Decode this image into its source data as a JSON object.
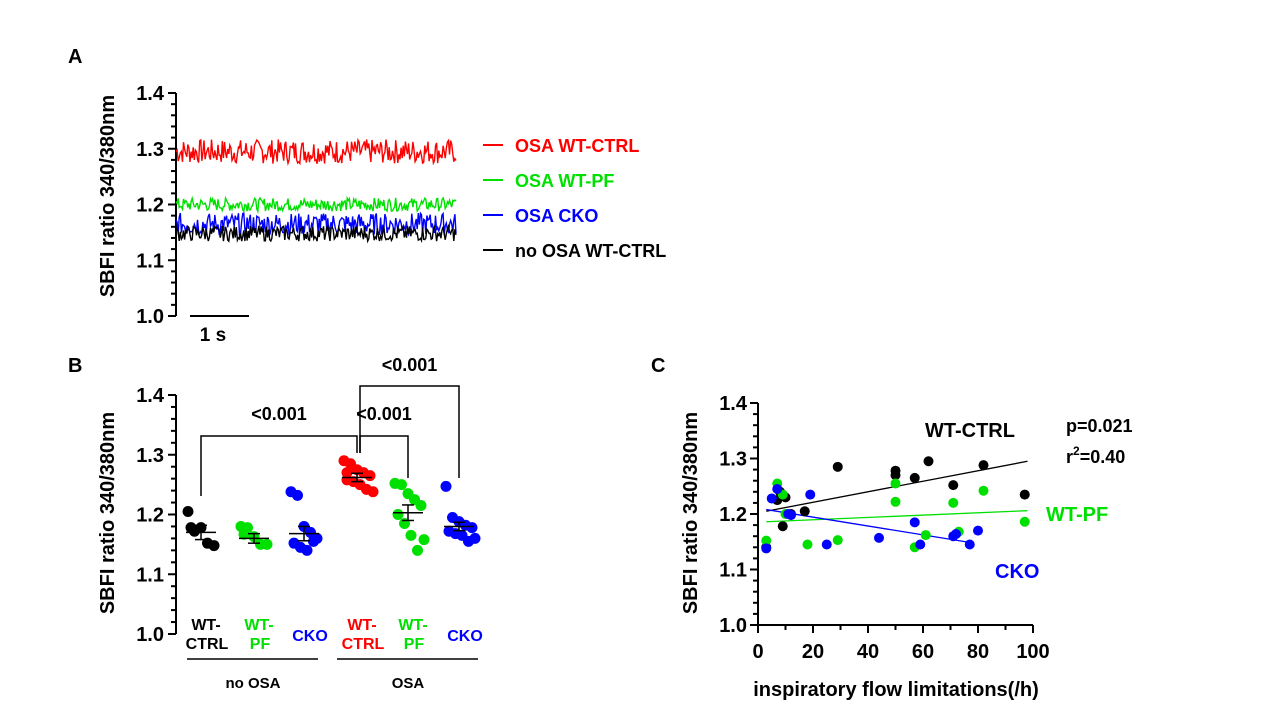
{
  "chart_data": [
    {
      "type": "line",
      "panel_label": "A",
      "ylabel": "SBFI ratio 340/380nm",
      "ylim": [
        1.0,
        1.4
      ],
      "yticks": [
        "1.4",
        "1.3",
        "1.2",
        "1.1",
        "1.0"
      ],
      "scale_bar_label": "1 s",
      "series": [
        {
          "name": "OSA WT-CTRL",
          "mean": 1.295,
          "noise": 0.022,
          "color": "#ff0000"
        },
        {
          "name": "OSA WT-PF",
          "mean": 1.2,
          "noise": 0.012,
          "color": "#00e000"
        },
        {
          "name": "OSA CKO",
          "mean": 1.165,
          "noise": 0.02,
          "color": "#0000ff"
        },
        {
          "name": "no OSA WT-CTRL",
          "mean": 1.148,
          "noise": 0.014,
          "color": "#000000"
        }
      ]
    },
    {
      "type": "scatter",
      "panel_label": "B",
      "ylabel": "SBFI ratio 340/380nm",
      "ylim": [
        1.0,
        1.4
      ],
      "yticks": [
        "1.4",
        "1.3",
        "1.2",
        "1.1",
        "1.0"
      ],
      "groups": [
        {
          "label_line1": "WT-",
          "label_line2": "CTRL",
          "color": "#000000",
          "mean": 1.17,
          "sem": 0.012,
          "values": [
            1.205,
            1.172,
            1.178,
            1.152,
            1.148,
            1.178
          ]
        },
        {
          "label_line1": "WT-",
          "label_line2": "PF",
          "color": "#00e000",
          "mean": 1.16,
          "sem": 0.008,
          "values": [
            1.18,
            1.178,
            1.163,
            1.15,
            1.15,
            1.167
          ]
        },
        {
          "label_line1": "",
          "label_line2": "CKO",
          "color": "#0000ff",
          "mean": 1.168,
          "sem": 0.012,
          "values": [
            1.238,
            1.232,
            1.18,
            1.17,
            1.16,
            1.152,
            1.145,
            1.14,
            1.155
          ]
        },
        {
          "label_line1": "WT-",
          "label_line2": "CTRL",
          "color": "#ff0000",
          "mean": 1.262,
          "sem": 0.007,
          "values": [
            1.29,
            1.285,
            1.275,
            1.27,
            1.265,
            1.258,
            1.255,
            1.25,
            1.242,
            1.238,
            1.27
          ]
        },
        {
          "label_line1": "WT-",
          "label_line2": "PF",
          "color": "#00e000",
          "mean": 1.203,
          "sem": 0.013,
          "values": [
            1.252,
            1.25,
            1.235,
            1.225,
            1.215,
            1.2,
            1.185,
            1.165,
            1.14,
            1.158
          ]
        },
        {
          "label_line1": "",
          "label_line2": "CKO",
          "color": "#0000ff",
          "mean": 1.18,
          "sem": 0.007,
          "values": [
            1.247,
            1.195,
            1.188,
            1.182,
            1.178,
            1.172,
            1.168,
            1.165,
            1.155,
            1.16
          ]
        }
      ],
      "condition_labels": [
        "no OSA",
        "OSA"
      ],
      "comparisons": [
        {
          "from": 0,
          "to": 3,
          "label": "<0.001"
        },
        {
          "from": 3,
          "to": 4,
          "label": "<0.001"
        },
        {
          "from": 3,
          "to": 5,
          "label": "<0.001"
        }
      ]
    },
    {
      "type": "scatter",
      "panel_label": "C",
      "xlabel": "inspiratory flow limitations(/h)",
      "ylabel": "SBFI ratio 340/380nm",
      "xlim": [
        0,
        100
      ],
      "ylim": [
        1.0,
        1.4
      ],
      "xticks": [
        "0",
        "20",
        "40",
        "60",
        "80",
        "100"
      ],
      "yticks": [
        "1.4",
        "1.3",
        "1.2",
        "1.1",
        "1.0"
      ],
      "stats": {
        "p": "p=0.021",
        "r2_prefix": "r",
        "r2_sup": "2",
        "r2_value": "=0.40"
      },
      "series": [
        {
          "name": "WT-CTRL",
          "color": "#000000",
          "points": [
            [
              7,
              1.225
            ],
            [
              10,
              1.23
            ],
            [
              9,
              1.178
            ],
            [
              17,
              1.205
            ],
            [
              29,
              1.285
            ],
            [
              50,
              1.27
            ],
            [
              50,
              1.278
            ],
            [
              57,
              1.265
            ],
            [
              62,
              1.295
            ],
            [
              71,
              1.252
            ],
            [
              82,
              1.288
            ],
            [
              97,
              1.235
            ],
            [
              12,
              1.2
            ],
            [
              8,
              1.24
            ],
            [
              3,
              1.14
            ]
          ],
          "fit": [
            [
              3,
              1.205
            ],
            [
              98,
              1.295
            ]
          ]
        },
        {
          "name": "WT-PF",
          "color": "#00e000",
          "points": [
            [
              3,
              1.152
            ],
            [
              7,
              1.255
            ],
            [
              9,
              1.235
            ],
            [
              18,
              1.145
            ],
            [
              29,
              1.153
            ],
            [
              50,
              1.255
            ],
            [
              50,
              1.222
            ],
            [
              57,
              1.14
            ],
            [
              61,
              1.162
            ],
            [
              71,
              1.22
            ],
            [
              73,
              1.168
            ],
            [
              82,
              1.242
            ],
            [
              97,
              1.186
            ],
            [
              10,
              1.2
            ]
          ],
          "fit": [
            [
              3,
              1.186
            ],
            [
              98,
              1.206
            ]
          ]
        },
        {
          "name": "CKO",
          "color": "#0000ff",
          "points": [
            [
              3,
              1.138
            ],
            [
              5,
              1.228
            ],
            [
              7,
              1.245
            ],
            [
              11,
              1.2
            ],
            [
              19,
              1.235
            ],
            [
              25,
              1.145
            ],
            [
              44,
              1.157
            ],
            [
              57,
              1.185
            ],
            [
              59,
              1.145
            ],
            [
              71,
              1.16
            ],
            [
              72,
              1.164
            ],
            [
              77,
              1.145
            ],
            [
              80,
              1.17
            ],
            [
              12,
              1.198
            ]
          ],
          "fit": [
            [
              3,
              1.208
            ],
            [
              78,
              1.148
            ]
          ]
        }
      ]
    }
  ]
}
